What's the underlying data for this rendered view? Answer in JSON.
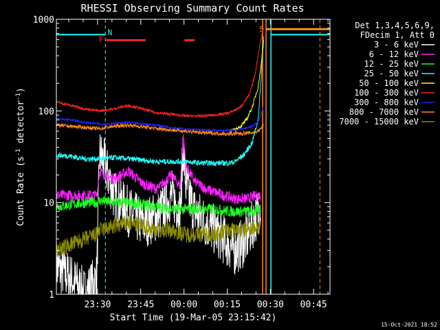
{
  "chart_data": {
    "type": "line",
    "title": "RHESSI Observing Summary Count Rates",
    "xlabel": "Start Time (19-Mar-05 23:15:42)",
    "ylabel_parts": [
      "Count Rate (s",
      "-1",
      " detector",
      "-1",
      ")"
    ],
    "yscale": "log",
    "ylim": [
      1,
      1000
    ],
    "xlim_minutes": [
      0,
      95
    ],
    "x_ticks": [
      {
        "label": "23:30",
        "minute": 14.3
      },
      {
        "label": "23:45",
        "minute": 29.3
      },
      {
        "label": "00:00",
        "minute": 44.3
      },
      {
        "label": "00:15",
        "minute": 59.3
      },
      {
        "label": "00:30",
        "minute": 74.3
      },
      {
        "label": "00:45",
        "minute": 89.3
      }
    ],
    "y_ticks": [
      {
        "label": "1",
        "value": 1
      },
      {
        "label": "10",
        "value": 10
      },
      {
        "label": "100",
        "value": 100
      },
      {
        "label": "1000",
        "value": 1000
      }
    ],
    "legend_header": [
      "Det 1,3,4,5,6,9,",
      "FDecim 1, Att 0"
    ],
    "legend_placement": "right",
    "series": [
      {
        "name": "3 - 6 keV",
        "color": "#ffffff",
        "x": [
          0,
          5,
          10,
          14,
          15,
          17,
          20,
          25,
          30,
          35,
          40,
          43,
          44,
          45,
          48,
          52,
          55,
          58,
          62,
          66,
          70,
          71
        ],
        "y": [
          2,
          1.5,
          1,
          1.5,
          35,
          25,
          12,
          8,
          6,
          7,
          12,
          8,
          40,
          15,
          8,
          6,
          5,
          4,
          3,
          4,
          8,
          10
        ]
      },
      {
        "name": "6 - 12 keV",
        "color": "#ff22ff",
        "x": [
          0,
          5,
          10,
          14,
          15,
          17,
          20,
          25,
          30,
          35,
          40,
          43,
          44,
          45,
          48,
          52,
          55,
          58,
          62,
          66,
          70,
          71
        ],
        "y": [
          12,
          12,
          12,
          12,
          22,
          20,
          18,
          22,
          16,
          14,
          20,
          15,
          55,
          25,
          17,
          14,
          13,
          12,
          11,
          11,
          12,
          12
        ]
      },
      {
        "name": "12 - 25 keV",
        "color": "#22ff22",
        "x": [
          0,
          5,
          10,
          14,
          15,
          20,
          25,
          30,
          35,
          40,
          45,
          50,
          55,
          60,
          65,
          70,
          71
        ],
        "y": [
          9,
          9.5,
          10,
          10,
          10.5,
          10,
          10,
          9.5,
          9,
          8.5,
          8.5,
          8.5,
          8.5,
          8,
          8,
          8,
          9
        ]
      },
      {
        "name": "25 - 50 keV",
        "color": "#22ffff",
        "x": [
          0,
          5,
          10,
          15,
          20,
          25,
          30,
          35,
          40,
          45,
          50,
          55,
          60,
          62,
          65,
          68,
          70,
          71,
          71.6,
          72
        ],
        "y": [
          33,
          32,
          30,
          30,
          31,
          30,
          29,
          28,
          28,
          28,
          27,
          27,
          27,
          28,
          33,
          45,
          80,
          200,
          500,
          700
        ]
      },
      {
        "name": "50 - 100 keV",
        "color": "#ffff22",
        "x": [
          60,
          62,
          64,
          66,
          68,
          70,
          71,
          72
        ],
        "y": [
          60,
          62,
          68,
          80,
          110,
          180,
          300,
          600
        ]
      },
      {
        "name": "100 - 300 keV",
        "color": "#ff2222",
        "x": [
          0,
          5,
          10,
          15,
          20,
          25,
          30,
          35,
          40,
          45,
          50,
          55,
          60,
          64,
          67,
          69,
          70,
          71,
          71.6,
          72
        ],
        "y": [
          125,
          115,
          105,
          100,
          105,
          115,
          105,
          95,
          92,
          88,
          88,
          90,
          95,
          110,
          150,
          250,
          400,
          600,
          750,
          800
        ]
      },
      {
        "name": "300 - 800 keV",
        "color": "#2222ff",
        "x": [
          0,
          5,
          10,
          15,
          20,
          25,
          30,
          35,
          40,
          45,
          50,
          55,
          60,
          65,
          68,
          70,
          71,
          72
        ],
        "y": [
          82,
          80,
          75,
          72,
          73,
          75,
          72,
          70,
          66,
          63,
          62,
          61,
          61,
          64,
          68,
          75,
          90,
          120
        ]
      },
      {
        "name": "800 - 7000 keV",
        "color": "#ff8c1a",
        "x": [
          0,
          5,
          10,
          15,
          20,
          25,
          30,
          35,
          40,
          45,
          50,
          55,
          60,
          65,
          68,
          70,
          71,
          72
        ],
        "y": [
          70,
          68,
          66,
          64,
          68,
          70,
          67,
          64,
          62,
          60,
          58,
          57,
          56,
          57,
          58,
          60,
          64,
          70
        ]
      },
      {
        "name": "7000 - 15000 keV",
        "color": "#8c8c00",
        "x": [
          0,
          5,
          10,
          14,
          15,
          20,
          25,
          30,
          35,
          40,
          45,
          50,
          55,
          60,
          65,
          70,
          71
        ],
        "y": [
          3,
          3.5,
          4,
          4.5,
          5,
          5.5,
          6,
          5.5,
          5,
          5,
          4.5,
          4.5,
          4.5,
          5,
          5,
          5.5,
          5.5
        ]
      }
    ],
    "annotations": [
      {
        "text": "N",
        "color": "#22ffff"
      },
      {
        "text": "F",
        "color": "#ff2222"
      },
      {
        "text": "S",
        "color": "#ff8c1a"
      }
    ]
  },
  "timestamp": "15-Oct-2021 18:52"
}
